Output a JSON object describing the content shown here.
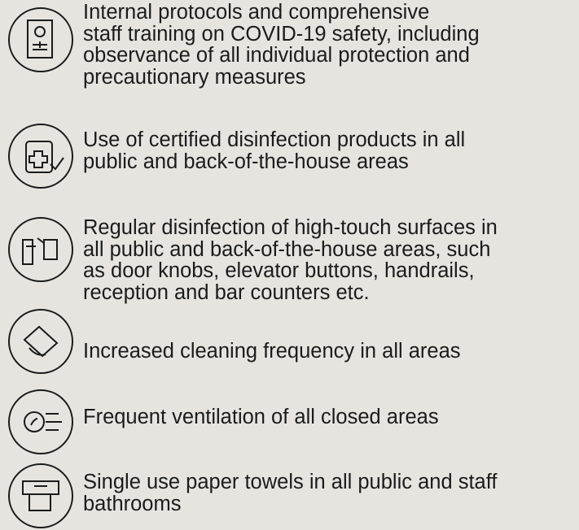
{
  "items": [
    {
      "lines": [
        "Internal protocols and comprehensive",
        "staff training on COVID-19 safety, including",
        "observance of all individual protection and",
        "precautionary measures"
      ]
    },
    {
      "lines": [
        "Use of certified disinfection products in all",
        "public and back-of-the-house areas"
      ]
    },
    {
      "lines": [
        "Regular disinfection of high-touch surfaces in",
        "all public and back-of-the-house areas, such",
        "as door knobs, elevator buttons, handrails,",
        "reception and bar counters etc."
      ]
    },
    {
      "lines": [
        "Increased cleaning frequency in all areas"
      ]
    },
    {
      "lines": [
        "Frequent ventilation of all closed areas"
      ]
    },
    {
      "lines": [
        "Single use paper towels in all public and staff",
        "bathrooms"
      ]
    }
  ]
}
